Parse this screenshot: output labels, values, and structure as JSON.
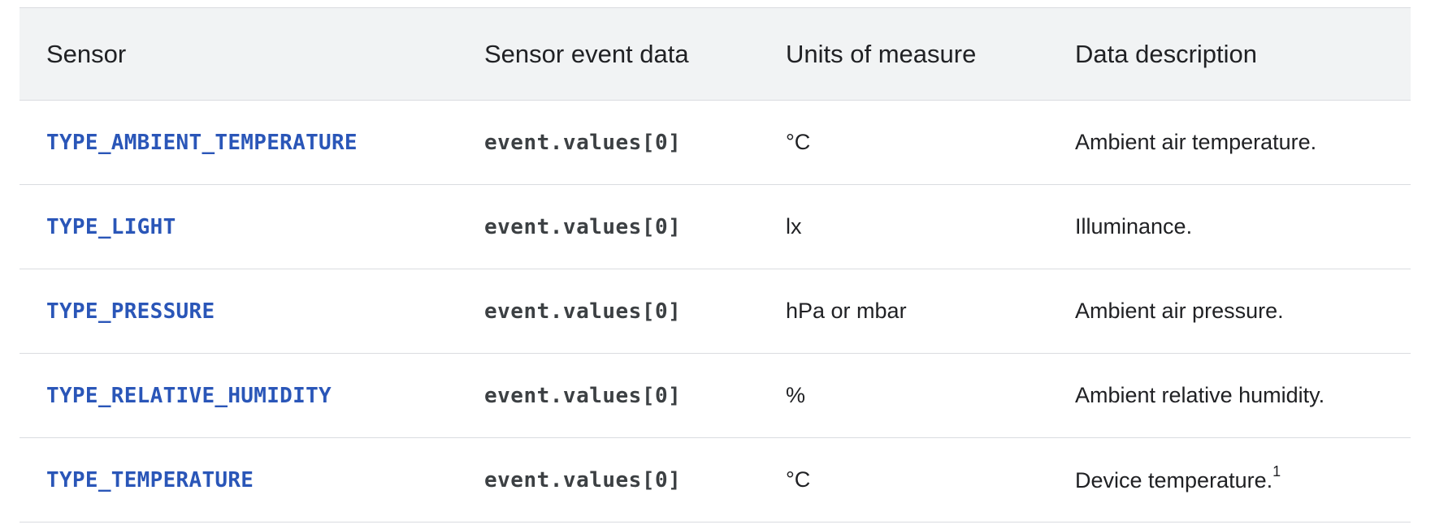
{
  "table": {
    "headers": [
      "Sensor",
      "Sensor event data",
      "Units of measure",
      "Data description"
    ],
    "rows": [
      {
        "sensor": "TYPE_AMBIENT_TEMPERATURE",
        "event": "event.values[0]",
        "units": "°C",
        "description": "Ambient air temperature.",
        "footnote": ""
      },
      {
        "sensor": "TYPE_LIGHT",
        "event": "event.values[0]",
        "units": "lx",
        "description": "Illuminance.",
        "footnote": ""
      },
      {
        "sensor": "TYPE_PRESSURE",
        "event": "event.values[0]",
        "units": "hPa or mbar",
        "description": "Ambient air pressure.",
        "footnote": ""
      },
      {
        "sensor": "TYPE_RELATIVE_HUMIDITY",
        "event": "event.values[0]",
        "units": "%",
        "description": "Ambient relative humidity.",
        "footnote": ""
      },
      {
        "sensor": "TYPE_TEMPERATURE",
        "event": "event.values[0]",
        "units": "°C",
        "description": "Device temperature.",
        "footnote": "1"
      }
    ]
  }
}
